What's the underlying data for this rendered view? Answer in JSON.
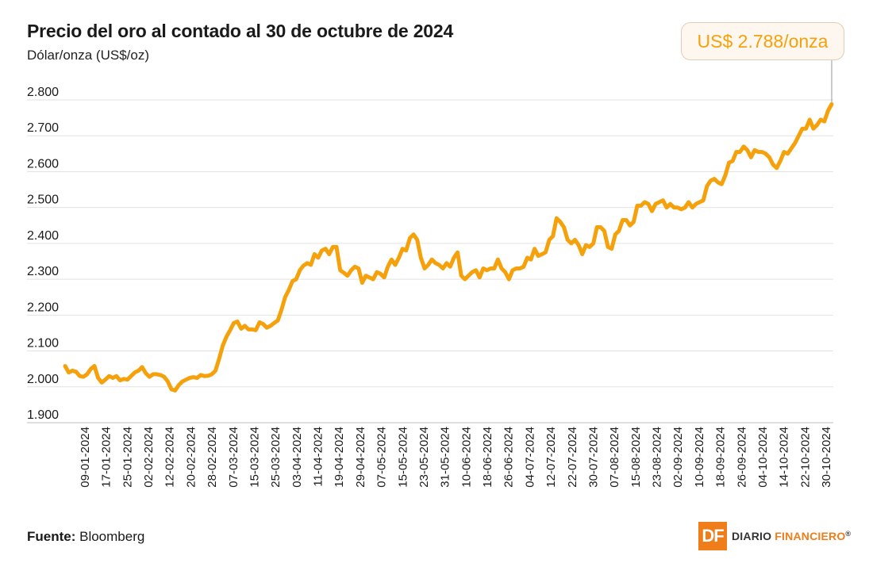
{
  "header": {
    "title": "Precio del oro al contado al 30 de octubre de 2024",
    "subtitle": "Dólar/onza (US$/oz)"
  },
  "callout": {
    "text": "US$ 2.788/onza"
  },
  "footer": {
    "source_label": "Fuente:",
    "source_value": " Bloomberg"
  },
  "logo": {
    "mark": "DF",
    "name_1": "DIARIO",
    "name_2": "FINANCIERO",
    "registered": "®"
  },
  "colors": {
    "line": "#f5a10c",
    "grid": "#e2e2e2",
    "text": "#1a1a1a",
    "brand": "#ef7d1a"
  },
  "chart_data": {
    "type": "line",
    "title": "Precio del oro al contado al 30 de octubre de 2024",
    "ylabel": "Dólar/onza (US$/oz)",
    "xlabel": "",
    "ylim": [
      1900,
      2800
    ],
    "y_ticks": [
      1900,
      2000,
      2100,
      2200,
      2300,
      2400,
      2500,
      2600,
      2700,
      2800
    ],
    "y_tick_labels": [
      "1.900",
      "2.000",
      "2.100",
      "2.200",
      "2.300",
      "2.400",
      "2.500",
      "2.600",
      "2.700",
      "2.800"
    ],
    "x_tick_labels": [
      "09-01-2024",
      "17-01-2024",
      "25-01-2024",
      "02-02-2024",
      "12-02-2024",
      "20-02-2024",
      "28-02-2024",
      "07-03-2024",
      "15-03-2024",
      "25-03-2024",
      "03-04-2024",
      "11-04-2024",
      "19-04-2024",
      "29-04-2024",
      "07-05-2024",
      "15-05-2024",
      "23-05-2024",
      "31-05-2024",
      "10-06-2024",
      "18-06-2024",
      "26-06-2024",
      "04-07-2024",
      "12-07-2024",
      "22-07-2024",
      "30-07-2024",
      "07-08-2024",
      "15-08-2024",
      "23-08-2024",
      "02-09-2024",
      "10-09-2024",
      "18-09-2024",
      "26-09-2024",
      "04-10-2024",
      "14-10-2024",
      "22-10-2024",
      "30-10-2024"
    ],
    "grid": true,
    "legend": "none",
    "series": [
      {
        "values": [
          2058,
          2040,
          2045,
          2042,
          2030,
          2028,
          2035,
          2050,
          2058,
          2025,
          2012,
          2020,
          2030,
          2025,
          2030,
          2018,
          2022,
          2020,
          2030,
          2040,
          2045,
          2055,
          2038,
          2028,
          2035,
          2035,
          2033,
          2028,
          2015,
          1993,
          1990,
          2005,
          2015,
          2020,
          2025,
          2027,
          2025,
          2033,
          2030,
          2031,
          2035,
          2045,
          2078,
          2115,
          2140,
          2158,
          2178,
          2182,
          2162,
          2170,
          2160,
          2160,
          2158,
          2180,
          2175,
          2165,
          2170,
          2178,
          2185,
          2215,
          2250,
          2270,
          2295,
          2300,
          2325,
          2338,
          2345,
          2340,
          2370,
          2360,
          2380,
          2385,
          2370,
          2390,
          2390,
          2325,
          2318,
          2310,
          2325,
          2335,
          2330,
          2290,
          2310,
          2305,
          2300,
          2320,
          2315,
          2305,
          2335,
          2355,
          2340,
          2360,
          2385,
          2380,
          2415,
          2425,
          2410,
          2360,
          2330,
          2340,
          2355,
          2345,
          2340,
          2330,
          2345,
          2335,
          2360,
          2375,
          2310,
          2300,
          2310,
          2320,
          2325,
          2305,
          2330,
          2325,
          2330,
          2330,
          2355,
          2330,
          2320,
          2300,
          2325,
          2330,
          2330,
          2335,
          2360,
          2355,
          2385,
          2365,
          2370,
          2375,
          2410,
          2420,
          2470,
          2460,
          2445,
          2410,
          2400,
          2410,
          2395,
          2370,
          2395,
          2390,
          2400,
          2445,
          2445,
          2435,
          2390,
          2385,
          2425,
          2435,
          2465,
          2465,
          2450,
          2460,
          2505,
          2505,
          2515,
          2510,
          2490,
          2510,
          2515,
          2520,
          2500,
          2510,
          2500,
          2500,
          2495,
          2500,
          2515,
          2500,
          2510,
          2515,
          2520,
          2560,
          2575,
          2580,
          2570,
          2565,
          2590,
          2625,
          2630,
          2655,
          2655,
          2670,
          2660,
          2640,
          2660,
          2655,
          2655,
          2650,
          2640,
          2620,
          2610,
          2630,
          2655,
          2650,
          2665,
          2680,
          2700,
          2720,
          2720,
          2745,
          2720,
          2730,
          2745,
          2740,
          2770,
          2788
        ]
      }
    ],
    "annotation": "US$ 2.788/onza"
  }
}
